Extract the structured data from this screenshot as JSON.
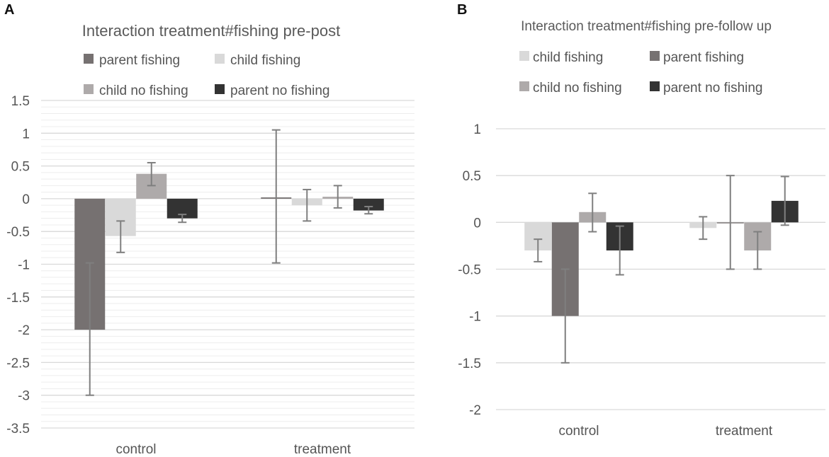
{
  "figure": {
    "panel_a_letter": "A",
    "panel_b_letter": "B"
  },
  "colors": {
    "parent fishing": "#767171",
    "child fishing": "#d9d9d9",
    "child no fishing": "#aeaaaa",
    "parent no fishing": "#333333",
    "gridline": "#d9d9d9",
    "minor_gridline": "#ededed",
    "errorbar": "#7f7f7f"
  },
  "chart_data": [
    {
      "type": "bar",
      "title": "Interaction treatment#fishing pre-post",
      "categories": [
        "control",
        "treatment"
      ],
      "ylim": [
        -3.5,
        1.5
      ],
      "yticks": [
        1.5,
        1,
        0.5,
        0,
        -0.5,
        -1,
        -1.5,
        -2,
        -2.5,
        -3,
        -3.5
      ],
      "ytick_labels": [
        "1.5",
        "1",
        "0.5",
        "0",
        "-0.5",
        "-1",
        "-1.5",
        "-2",
        "-2.5",
        "-3",
        "-3.5"
      ],
      "legend": [
        "parent fishing",
        "child fishing",
        "child no fishing",
        "parent no fishing"
      ],
      "legend_position": "top",
      "series": [
        {
          "name": "parent fishing",
          "values": [
            -2.0,
            0.02
          ],
          "err_low": [
            -3.0,
            -0.98
          ],
          "err_high": [
            -0.98,
            1.05
          ]
        },
        {
          "name": "child fishing",
          "values": [
            -0.57,
            -0.1
          ],
          "err_low": [
            -0.82,
            -0.34
          ],
          "err_high": [
            -0.34,
            0.14
          ]
        },
        {
          "name": "child no fishing",
          "values": [
            0.38,
            0.03
          ],
          "err_low": [
            0.2,
            -0.14
          ],
          "err_high": [
            0.55,
            0.2
          ]
        },
        {
          "name": "parent no fishing",
          "values": [
            -0.3,
            -0.18
          ],
          "err_low": [
            -0.36,
            -0.23
          ],
          "err_high": [
            -0.24,
            -0.12
          ]
        }
      ]
    },
    {
      "type": "bar",
      "title": "Interaction treatment#fishing pre-follow up",
      "categories": [
        "control",
        "treatment"
      ],
      "ylim": [
        -2,
        1
      ],
      "yticks": [
        1,
        0.5,
        0,
        -0.5,
        -1,
        -1.5,
        -2
      ],
      "ytick_labels": [
        "1",
        "0.5",
        "0",
        "-0.5",
        "-1",
        "-1.5",
        "-2"
      ],
      "legend": [
        "child fishing",
        "parent fishing",
        "child no fishing",
        "parent no fishing"
      ],
      "legend_position": "top",
      "series": [
        {
          "name": "child fishing",
          "values": [
            -0.3,
            -0.06
          ],
          "err_low": [
            -0.42,
            -0.18
          ],
          "err_high": [
            -0.18,
            0.06
          ]
        },
        {
          "name": "parent fishing",
          "values": [
            -1.0,
            0.0
          ],
          "err_low": [
            -1.5,
            -0.5
          ],
          "err_high": [
            -0.5,
            0.5
          ]
        },
        {
          "name": "child no fishing",
          "values": [
            0.11,
            -0.3
          ],
          "err_low": [
            -0.1,
            -0.5
          ],
          "err_high": [
            0.31,
            -0.1
          ]
        },
        {
          "name": "parent no fishing",
          "values": [
            -0.3,
            0.23
          ],
          "err_low": [
            -0.56,
            -0.03
          ],
          "err_high": [
            -0.04,
            0.49
          ]
        }
      ]
    }
  ]
}
